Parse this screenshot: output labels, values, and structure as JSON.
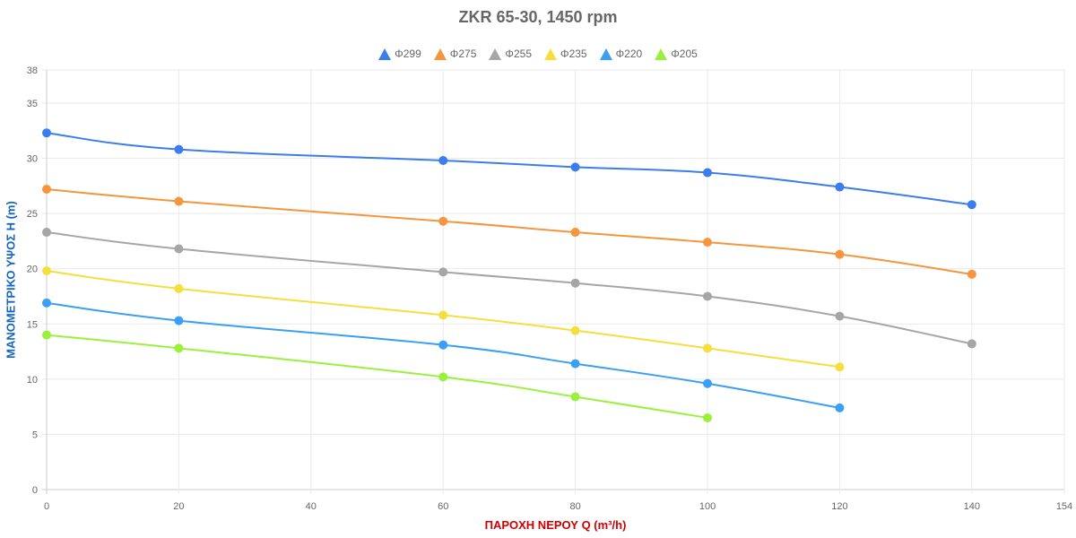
{
  "chart_data": {
    "type": "line",
    "title": "ZKR 65-30, 1450 rpm",
    "xlabel": "ΠΑΡΟΧΗ ΝΕΡΟΥ Q (m³/h)",
    "ylabel": "ΜΑΝΟΜΕΤΡΙΚΟ ΥΨΟΣ Η (m)",
    "xlim": [
      0,
      154
    ],
    "ylim": [
      0,
      38
    ],
    "xticks": [
      0,
      20,
      40,
      60,
      80,
      100,
      120,
      140,
      154
    ],
    "yticks": [
      0,
      5,
      10,
      15,
      20,
      25,
      30,
      35,
      38
    ],
    "grid": true,
    "legend_position": "top",
    "series": [
      {
        "name": "Φ299",
        "color": "#3b7ded",
        "x": [
          0,
          20,
          60,
          80,
          100,
          120,
          140
        ],
        "y": [
          32.3,
          30.8,
          29.8,
          29.2,
          28.7,
          27.4,
          25.8
        ]
      },
      {
        "name": "Φ275",
        "color": "#f5963f",
        "x": [
          0,
          20,
          60,
          80,
          100,
          120,
          140
        ],
        "y": [
          27.2,
          26.1,
          24.3,
          23.3,
          22.4,
          21.3,
          19.5
        ]
      },
      {
        "name": "Φ255",
        "color": "#a6a6a6",
        "x": [
          0,
          20,
          60,
          80,
          100,
          120,
          140
        ],
        "y": [
          23.3,
          21.8,
          19.7,
          18.7,
          17.5,
          15.7,
          13.2
        ]
      },
      {
        "name": "Φ235",
        "color": "#f5df3d",
        "x": [
          0,
          20,
          60,
          80,
          100,
          120
        ],
        "y": [
          19.8,
          18.2,
          15.8,
          14.4,
          12.8,
          11.1
        ]
      },
      {
        "name": "Φ220",
        "color": "#3a9ff5",
        "x": [
          0,
          20,
          60,
          80,
          100,
          120
        ],
        "y": [
          16.9,
          15.3,
          13.1,
          11.4,
          9.6,
          7.4
        ]
      },
      {
        "name": "Φ205",
        "color": "#9bf03e",
        "x": [
          0,
          20,
          60,
          80,
          100
        ],
        "y": [
          14.0,
          12.8,
          10.2,
          8.4,
          6.5
        ]
      }
    ]
  }
}
